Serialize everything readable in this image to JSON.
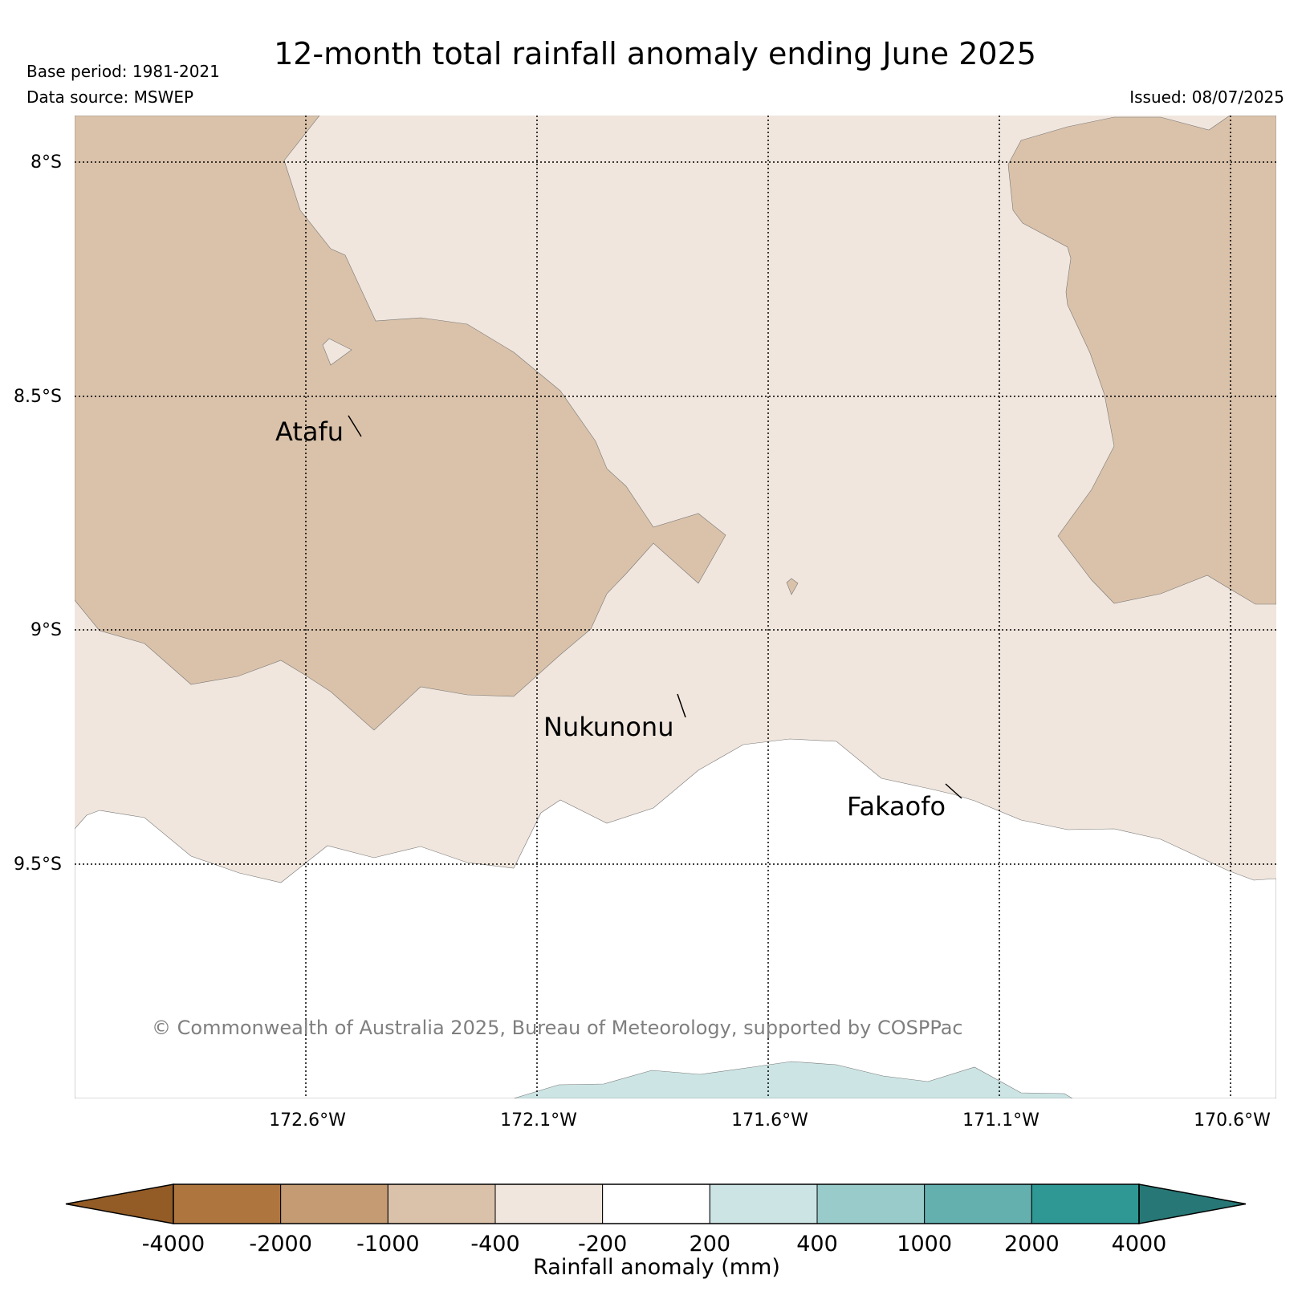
{
  "title": "12-month total rainfall anomaly ending June 2025",
  "base_period": "Base period: 1981-2021",
  "data_source": "Data source: MSWEP",
  "issued": "Issued: 08/07/2025",
  "copyright": "© Commonwealth of Australia 2025, Bureau of Meteorology, supported by COSPPac",
  "latitude_labels": [
    "8°S",
    "8.5°S",
    "9°S",
    "9.5°S"
  ],
  "longitude_labels": [
    "172.6°W",
    "172.1°W",
    "171.6°W",
    "171.1°W",
    "170.6°W"
  ],
  "places": [
    {
      "name": "Atafu"
    },
    {
      "name": "Nukunonu"
    },
    {
      "name": "Fakaofo"
    }
  ],
  "colorbar": {
    "label": "Rainfall anomaly (mm)",
    "ticks": [
      "-4000",
      "-2000",
      "-1000",
      "-400",
      "-200",
      "200",
      "400",
      "1000",
      "2000",
      "4000"
    ],
    "colors": [
      "#935b25",
      "#ae763e",
      "#c49b72",
      "#dac2aa",
      "#f0e6dd",
      "#ffffff",
      "#cce5e4",
      "#98cbca",
      "#63b0af",
      "#2f9894",
      "#267775"
    ]
  },
  "fill_colors": {
    "dry_mid": "#dac2aa",
    "dry_light": "#f0e6dd",
    "wet_light": "#cce5e4"
  }
}
